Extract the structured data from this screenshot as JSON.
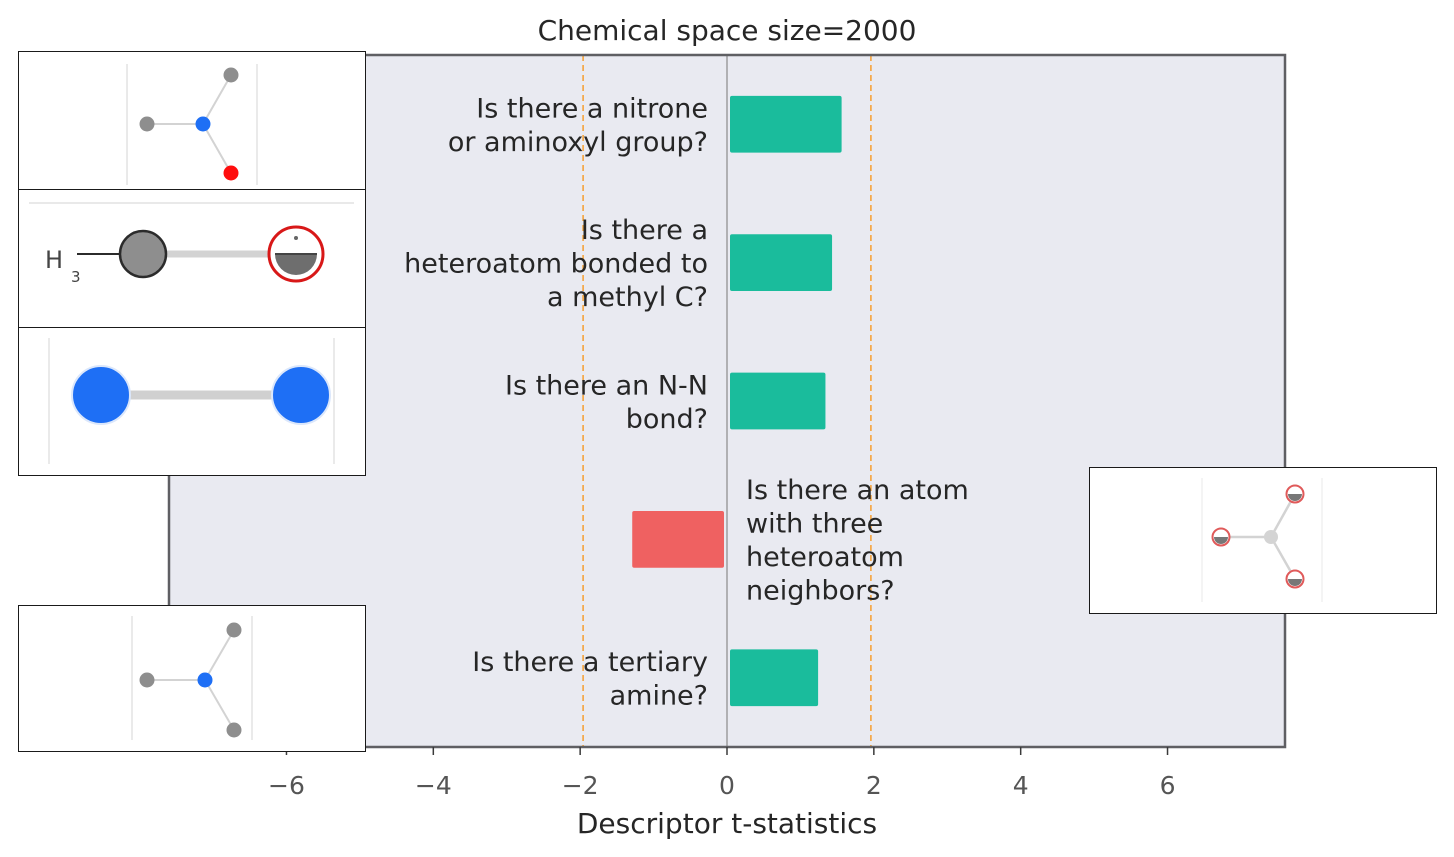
{
  "chart_data": {
    "type": "bar",
    "orientation": "horizontal",
    "title": "Chemical space size=2000",
    "xlabel": "Descriptor t-statistics",
    "ylabel": "",
    "xlim": [
      -7.6,
      7.6
    ],
    "xticks": [
      -6,
      -4,
      -2,
      0,
      2,
      4,
      6
    ],
    "xtick_labels": [
      "−6",
      "−4",
      "−2",
      "0",
      "2",
      "4",
      "6"
    ],
    "threshold_lines": [
      -1.96,
      1.96
    ],
    "grid": false,
    "categories": [
      [
        "Is there a nitrone",
        "or aminoxyl group?"
      ],
      [
        "Is there a",
        "heteroatom bonded to",
        "a methyl C?"
      ],
      [
        "Is there an N-N",
        "bond?"
      ],
      [
        "Is there an atom",
        "with three",
        "heteroatom",
        "neighbors?"
      ],
      [
        "Is there a tertiary",
        "amine?"
      ]
    ],
    "values": [
      1.52,
      1.39,
      1.3,
      -1.25,
      1.2
    ],
    "colors": {
      "positive": "#1abc9c",
      "negative": "#ef6161",
      "background": "#e9eaf1",
      "threshold": "#f5a33c",
      "zero_line": "#8a8a8a",
      "frame": "#5f5f63"
    }
  },
  "thumbnails": [
    {
      "id": "nitrone",
      "atoms": [
        "carbon",
        "nitrogen",
        "carbon",
        "oxygen"
      ]
    },
    {
      "id": "methyl-heteroatom",
      "label_h": "H",
      "label_sub": "3"
    },
    {
      "id": "nn-bond",
      "atoms": [
        "nitrogen",
        "nitrogen"
      ]
    },
    {
      "id": "three-heteroatom",
      "atoms": [
        "carbon",
        "heteroatom",
        "heteroatom",
        "heteroatom"
      ]
    },
    {
      "id": "tertiary-amine",
      "atoms": [
        "carbon",
        "nitrogen",
        "carbon",
        "carbon"
      ]
    }
  ]
}
